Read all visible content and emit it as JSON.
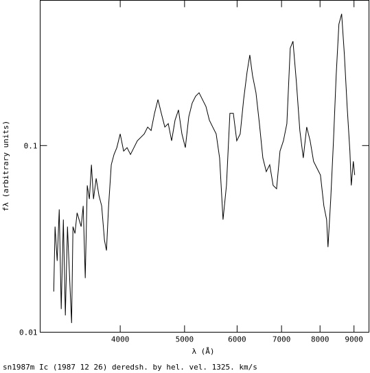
{
  "chart_data": {
    "type": "line",
    "x_label": "λ (Å)",
    "y_label": "fλ (arbitrary units)",
    "caption": "sn1987m Ic (1987 12 26) deredsh. by hel. vel.  1325. km/s",
    "x": [
      3176,
      3191,
      3214,
      3237,
      3260,
      3284,
      3307,
      3331,
      3354,
      3379,
      3395,
      3419,
      3444,
      3468,
      3493,
      3518,
      3543,
      3568,
      3594,
      3620,
      3646,
      3680,
      3716,
      3751,
      3787,
      3814,
      3842,
      3878,
      3915,
      3953,
      4000,
      4048,
      4096,
      4145,
      4195,
      4245,
      4296,
      4347,
      4399,
      4452,
      4505,
      4559,
      4613,
      4669,
      4725,
      4781,
      4838,
      4896,
      4955,
      5014,
      5074,
      5135,
      5196,
      5258,
      5321,
      5385,
      5449,
      5514,
      5580,
      5647,
      5714,
      5783,
      5852,
      5922,
      5993,
      6065,
      6137,
      6211,
      6270,
      6330,
      6406,
      6483,
      6560,
      6639,
      6718,
      6799,
      6880,
      6962,
      7046,
      7130,
      7215,
      7284,
      7371,
      7459,
      7549,
      7639,
      7730,
      7823,
      7917,
      8011,
      8107,
      8184,
      8223,
      8302,
      8381,
      8461,
      8542,
      8623,
      8706,
      8789,
      8873,
      8915,
      8979,
      9022
    ],
    "series": [
      {
        "color": "#000000",
        "values": [
          0.0165,
          0.0368,
          0.0241,
          0.0455,
          0.0133,
          0.0401,
          0.0123,
          0.0368,
          0.0204,
          0.0112,
          0.0368,
          0.0338,
          0.0436,
          0.0401,
          0.0368,
          0.0475,
          0.0195,
          0.0612,
          0.0517,
          0.0789,
          0.0517,
          0.0667,
          0.0539,
          0.0475,
          0.0311,
          0.0274,
          0.0475,
          0.0789,
          0.0896,
          0.0975,
          0.1155,
          0.0935,
          0.0975,
          0.0896,
          0.0975,
          0.1061,
          0.1107,
          0.1155,
          0.1257,
          0.1205,
          0.1489,
          0.1763,
          0.1489,
          0.1257,
          0.1311,
          0.1061,
          0.1368,
          0.1553,
          0.1155,
          0.0975,
          0.1427,
          0.169,
          0.1839,
          0.1919,
          0.1763,
          0.162,
          0.1368,
          0.1257,
          0.1155,
          0.0859,
          0.0401,
          0.0612,
          0.1489,
          0.1489,
          0.1061,
          0.1155,
          0.1763,
          0.2474,
          0.3057,
          0.2371,
          0.1919,
          0.1311,
          0.0859,
          0.0725,
          0.0789,
          0.0612,
          0.0587,
          0.0935,
          0.1061,
          0.1311,
          0.3327,
          0.3622,
          0.2179,
          0.1205,
          0.0859,
          0.1257,
          0.1061,
          0.0823,
          0.0756,
          0.0695,
          0.0475,
          0.0401,
          0.0286,
          0.0517,
          0.1061,
          0.2371,
          0.4474,
          0.5081,
          0.3057,
          0.162,
          0.0935,
          0.0612,
          0.0823,
          0.0695
        ]
      }
    ],
    "xlim": [
      3030,
      9480
    ],
    "ylim": [
      0.01,
      0.6
    ],
    "xticks": [
      4000,
      5000,
      6000,
      7000,
      8000,
      9000
    ],
    "yticks": [
      0.01,
      0.1
    ],
    "xscale": "log",
    "yscale": "log"
  }
}
